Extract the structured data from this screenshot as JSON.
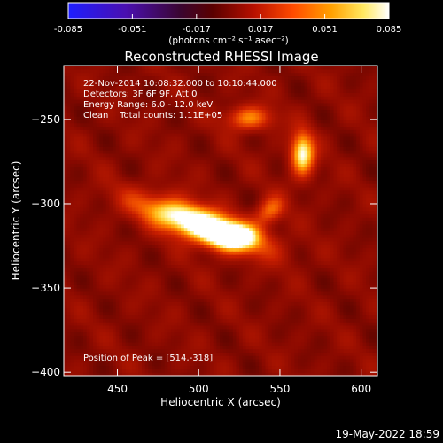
{
  "colorbar": {
    "ticks": [
      "-0.085",
      "-0.051",
      "-0.017",
      "0.017",
      "0.051",
      "0.085"
    ],
    "unit_label": "(photons cm⁻² s⁻¹ asec⁻²)",
    "min": -0.085,
    "max": 0.085,
    "colormap": "rainbow-to-hot (blue-violet-red-orange-yellow-white)"
  },
  "chart_data": {
    "type": "heatmap",
    "title": "Reconstructed RHESSI Image",
    "xlabel": "Heliocentric X (arcsec)",
    "ylabel": "Heliocentric Y (arcsec)",
    "xlim": [
      417,
      610
    ],
    "ylim": [
      -402,
      -218
    ],
    "xticks": [
      450,
      500,
      550,
      600
    ],
    "yticks": [
      -250,
      -300,
      -350,
      -400
    ],
    "annotations": [
      "22-Nov-2014 10:08:32.000 to 10:10:44.000",
      "Detectors: 3F 6F 9F, Att 0",
      "Energy Range: 6.0 - 12.0 keV",
      "Clean    Total counts: 1.11E+05"
    ],
    "peak_label": "Position of Peak = [514,-318]",
    "peak": [
      514,
      -318
    ],
    "sources": [
      {
        "x": 500,
        "y": -313,
        "sx": 26,
        "sy": 7,
        "angle": -18,
        "amp": 1.0
      },
      {
        "x": 520,
        "y": -320,
        "sx": 10,
        "sy": 5,
        "angle": 0,
        "amp": 0.6
      },
      {
        "x": 563,
        "y": -271,
        "sx": 5,
        "sy": 9,
        "angle": 0,
        "amp": 0.75
      },
      {
        "x": 530,
        "y": -250,
        "sx": 10,
        "sy": 5,
        "angle": 0,
        "amp": 0.45
      },
      {
        "x": 543,
        "y": -305,
        "sx": 7,
        "sy": 5,
        "angle": 40,
        "amp": 0.4
      }
    ],
    "background_level": 0.25
  },
  "footer": {
    "timestamp": "19-May-2022 18:59"
  }
}
